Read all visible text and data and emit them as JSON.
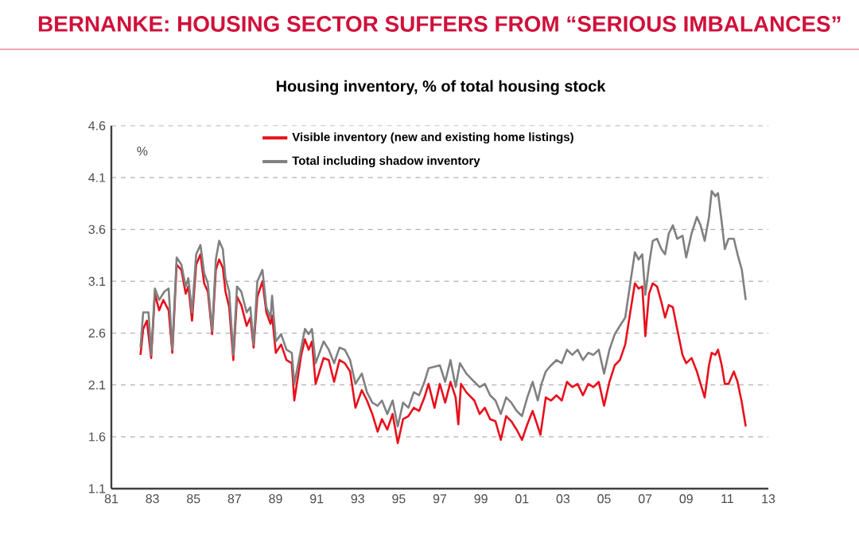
{
  "chart_data": {
    "type": "line",
    "title": "BERNANKE: HOUSING SECTOR SUFFERS FROM “SERIOUS IMBALANCES”",
    "subtitle": "Housing inventory, % of total housing stock",
    "ylabel": "%",
    "xlim": [
      1981,
      2013
    ],
    "xticks": [
      {
        "value": 1981,
        "label": "81"
      },
      {
        "value": 1983,
        "label": "83"
      },
      {
        "value": 1985,
        "label": "85"
      },
      {
        "value": 1987,
        "label": "87"
      },
      {
        "value": 1989,
        "label": "89"
      },
      {
        "value": 1991,
        "label": "91"
      },
      {
        "value": 1993,
        "label": "93"
      },
      {
        "value": 1995,
        "label": "95"
      },
      {
        "value": 1997,
        "label": "97"
      },
      {
        "value": 1999,
        "label": "99"
      },
      {
        "value": 2001,
        "label": "01"
      },
      {
        "value": 2003,
        "label": "03"
      },
      {
        "value": 2005,
        "label": "05"
      },
      {
        "value": 2007,
        "label": "07"
      },
      {
        "value": 2009,
        "label": "09"
      },
      {
        "value": 2011,
        "label": "11"
      },
      {
        "value": 2013,
        "label": "13"
      }
    ],
    "ylim": [
      1.1,
      4.6
    ],
    "yticks": [
      1.1,
      1.6,
      2.1,
      2.6,
      3.1,
      3.6,
      4.1,
      4.6
    ],
    "grid": "y",
    "legend": "top left",
    "marker": "none",
    "line_style": "solid",
    "series": [
      {
        "name": "Visible inventory (new and existing home listings)",
        "color": "#e8101c",
        "x": [
          1982.42,
          1982.55,
          1982.73,
          1982.94,
          1983.12,
          1983.33,
          1983.53,
          1983.79,
          1983.97,
          1984.18,
          1984.41,
          1984.62,
          1984.75,
          1984.93,
          1985.13,
          1985.34,
          1985.52,
          1985.7,
          1985.91,
          1986.09,
          1986.25,
          1986.43,
          1986.56,
          1986.74,
          1986.94,
          1987.12,
          1987.33,
          1987.59,
          1987.77,
          1987.93,
          1988.11,
          1988.36,
          1988.55,
          1988.75,
          1988.83,
          1989.01,
          1989.27,
          1989.53,
          1989.79,
          1989.91,
          1990.25,
          1990.43,
          1990.61,
          1990.77,
          1990.95,
          1991.34,
          1991.59,
          1991.85,
          1992.11,
          1992.37,
          1992.63,
          1992.89,
          1993.2,
          1993.45,
          1993.71,
          1993.97,
          1994.18,
          1994.44,
          1994.7,
          1994.95,
          1995.21,
          1995.47,
          1995.73,
          1995.99,
          1996.25,
          1996.45,
          1996.74,
          1997.0,
          1997.26,
          1997.52,
          1997.77,
          1997.9,
          1998.03,
          1998.29,
          1998.68,
          1998.94,
          1999.19,
          1999.45,
          1999.71,
          1999.97,
          2000.23,
          2000.48,
          2000.74,
          2001.0,
          2001.26,
          2001.52,
          2001.77,
          2001.9,
          2002.16,
          2002.42,
          2002.68,
          2002.94,
          2003.19,
          2003.45,
          2003.71,
          2003.97,
          2004.23,
          2004.48,
          2004.74,
          2005.0,
          2005.26,
          2005.52,
          2005.77,
          2006.03,
          2006.29,
          2006.5,
          2006.68,
          2006.86,
          2007.01,
          2007.19,
          2007.37,
          2007.58,
          2007.79,
          2007.97,
          2008.15,
          2008.35,
          2008.56,
          2008.82,
          2009.0,
          2009.26,
          2009.52,
          2009.7,
          2009.9,
          2010.11,
          2010.24,
          2010.42,
          2010.55,
          2010.73,
          2010.88,
          2011.06,
          2011.32,
          2011.5,
          2011.71,
          2011.9
        ],
        "values": [
          2.39,
          2.64,
          2.72,
          2.36,
          2.98,
          2.82,
          2.92,
          2.82,
          2.41,
          3.26,
          3.21,
          2.98,
          3.05,
          2.72,
          3.26,
          3.36,
          3.08,
          3.0,
          2.59,
          3.21,
          3.31,
          3.23,
          3.0,
          2.85,
          2.34,
          2.95,
          2.87,
          2.67,
          2.75,
          2.46,
          2.95,
          3.1,
          2.8,
          2.69,
          2.77,
          2.41,
          2.49,
          2.34,
          2.31,
          1.95,
          2.39,
          2.54,
          2.44,
          2.52,
          2.11,
          2.36,
          2.34,
          2.13,
          2.34,
          2.31,
          2.23,
          1.88,
          2.05,
          1.95,
          1.82,
          1.65,
          1.77,
          1.67,
          1.82,
          1.54,
          1.77,
          1.8,
          1.88,
          1.85,
          1.98,
          2.11,
          1.88,
          2.11,
          1.93,
          2.13,
          1.98,
          1.72,
          2.11,
          2.03,
          1.95,
          1.82,
          1.88,
          1.77,
          1.75,
          1.57,
          1.8,
          1.75,
          1.67,
          1.57,
          1.72,
          1.85,
          1.7,
          1.62,
          1.98,
          1.95,
          2.0,
          1.95,
          2.13,
          2.08,
          2.11,
          2.0,
          2.11,
          2.08,
          2.13,
          1.9,
          2.13,
          2.29,
          2.34,
          2.49,
          2.82,
          3.08,
          3.03,
          3.05,
          2.57,
          2.98,
          3.08,
          3.05,
          2.9,
          2.75,
          2.87,
          2.85,
          2.64,
          2.39,
          2.31,
          2.36,
          2.23,
          2.11,
          1.98,
          2.29,
          2.41,
          2.39,
          2.44,
          2.29,
          2.11,
          2.11,
          2.23,
          2.13,
          1.93,
          1.7
        ]
      },
      {
        "name": "Total including shadow inventory",
        "color": "#808080",
        "x": [
          1982.42,
          1982.55,
          1982.81,
          1982.94,
          1983.12,
          1983.33,
          1983.58,
          1983.79,
          1983.97,
          1984.18,
          1984.41,
          1984.62,
          1984.75,
          1984.93,
          1985.13,
          1985.34,
          1985.52,
          1985.7,
          1985.91,
          1986.09,
          1986.25,
          1986.43,
          1986.56,
          1986.74,
          1986.94,
          1987.12,
          1987.33,
          1987.59,
          1987.77,
          1987.93,
          1988.11,
          1988.36,
          1988.55,
          1988.75,
          1988.83,
          1989.01,
          1989.27,
          1989.53,
          1989.79,
          1989.91,
          1990.25,
          1990.43,
          1990.61,
          1990.77,
          1990.95,
          1991.34,
          1991.59,
          1991.85,
          1992.11,
          1992.37,
          1992.63,
          1992.89,
          1993.2,
          1993.45,
          1993.71,
          1993.97,
          1994.18,
          1994.44,
          1994.7,
          1994.95,
          1995.21,
          1995.47,
          1995.73,
          1995.99,
          1996.25,
          1996.45,
          1997.0,
          1997.26,
          1997.52,
          1997.77,
          1997.98,
          1998.29,
          1998.68,
          1998.94,
          1999.19,
          1999.45,
          1999.71,
          1999.97,
          2000.23,
          2000.48,
          2000.74,
          2001.0,
          2001.26,
          2001.52,
          2001.77,
          2001.95,
          2002.16,
          2002.42,
          2002.68,
          2002.94,
          2003.19,
          2003.45,
          2003.71,
          2003.97,
          2004.23,
          2004.48,
          2004.74,
          2005.0,
          2005.26,
          2005.52,
          2005.77,
          2006.03,
          2006.29,
          2006.5,
          2006.68,
          2006.86,
          2007.01,
          2007.19,
          2007.37,
          2007.58,
          2007.79,
          2007.97,
          2008.15,
          2008.35,
          2008.56,
          2008.82,
          2009.0,
          2009.26,
          2009.52,
          2009.7,
          2009.9,
          2010.11,
          2010.24,
          2010.42,
          2010.55,
          2010.73,
          2010.88,
          2011.06,
          2011.32,
          2011.5,
          2011.71,
          2011.9
        ],
        "values": [
          2.46,
          2.8,
          2.8,
          2.39,
          3.03,
          2.92,
          3.0,
          3.03,
          2.44,
          3.33,
          3.26,
          3.05,
          3.13,
          2.8,
          3.36,
          3.45,
          3.18,
          3.08,
          2.62,
          3.31,
          3.49,
          3.41,
          3.13,
          3.0,
          2.39,
          3.05,
          3.0,
          2.8,
          2.85,
          2.49,
          3.1,
          3.21,
          2.85,
          2.75,
          2.96,
          2.52,
          2.59,
          2.44,
          2.41,
          2.11,
          2.46,
          2.64,
          2.59,
          2.64,
          2.31,
          2.52,
          2.44,
          2.31,
          2.46,
          2.44,
          2.34,
          2.11,
          2.21,
          2.03,
          1.93,
          1.9,
          1.95,
          1.82,
          1.95,
          1.7,
          1.93,
          1.88,
          2.03,
          2.0,
          2.13,
          2.26,
          2.29,
          2.13,
          2.34,
          2.08,
          2.31,
          2.21,
          2.13,
          2.08,
          2.11,
          2.0,
          1.95,
          1.82,
          1.98,
          1.93,
          1.85,
          1.8,
          1.98,
          2.13,
          1.95,
          2.11,
          2.23,
          2.29,
          2.34,
          2.31,
          2.44,
          2.39,
          2.44,
          2.34,
          2.41,
          2.39,
          2.44,
          2.21,
          2.44,
          2.59,
          2.67,
          2.75,
          3.1,
          3.38,
          3.31,
          3.36,
          2.97,
          3.26,
          3.49,
          3.51,
          3.41,
          3.36,
          3.56,
          3.64,
          3.51,
          3.54,
          3.33,
          3.56,
          3.72,
          3.64,
          3.49,
          3.72,
          3.97,
          3.92,
          3.95,
          3.67,
          3.41,
          3.51,
          3.51,
          3.36,
          3.21,
          2.92
        ]
      }
    ]
  }
}
